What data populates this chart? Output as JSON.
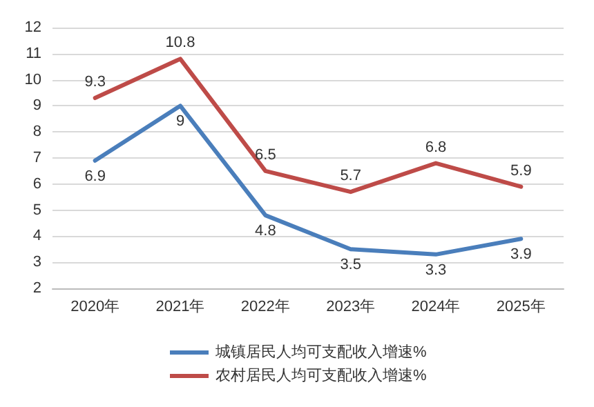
{
  "chart_data": {
    "type": "line",
    "categories": [
      "2020年",
      "2021年",
      "2022年",
      "2023年",
      "2024年",
      "2025年"
    ],
    "series": [
      {
        "name": "城镇居民人均可支配收入增速%",
        "color": "#4a7ebb",
        "values": [
          6.9,
          9,
          4.8,
          3.5,
          3.3,
          3.9
        ]
      },
      {
        "name": "农村居民人均可支配收入增速%",
        "color": "#be4b48",
        "values": [
          9.3,
          10.8,
          6.5,
          5.7,
          6.8,
          5.9
        ]
      }
    ],
    "ylim": [
      2,
      12
    ],
    "yticks": [
      2,
      3,
      4,
      5,
      6,
      7,
      8,
      9,
      10,
      11,
      12
    ],
    "grid": "y",
    "legend": "bottom",
    "marker": "none",
    "line_style": "solid",
    "data_labels": true
  }
}
